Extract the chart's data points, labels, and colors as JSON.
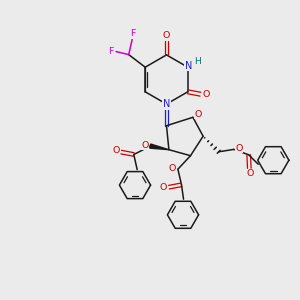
{
  "bg_color": "#ebebeb",
  "figsize": [
    3.0,
    3.0
  ],
  "dpi": 100,
  "colors": {
    "C": "#1a1a1a",
    "N": "#2020cc",
    "O": "#cc0000",
    "F": "#cc00cc",
    "H": "#007070",
    "bond": "#1a1a1a"
  }
}
